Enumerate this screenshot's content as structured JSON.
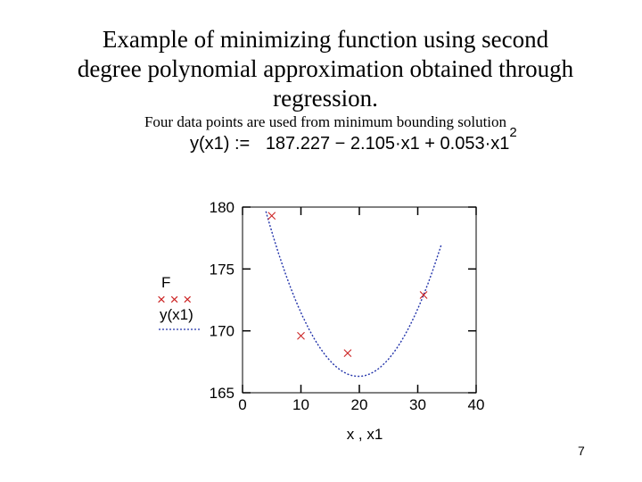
{
  "slide": {
    "title_lines": [
      "Example of minimizing function using second",
      "degree polynomial approximation obtained through",
      "regression."
    ],
    "subtitle": "Four data points are used from minimum bounding solution",
    "equation": {
      "lhs": "y(x1) :=",
      "rhs": "187.227 − 2.105·x1 + 0.053·x1",
      "exponent": "2"
    },
    "page_number": "7"
  },
  "chart_data": {
    "type": "scatter",
    "xlabel": "x , x1",
    "xlim": [
      0,
      40
    ],
    "ylim": [
      165,
      180
    ],
    "x_ticks": [
      0,
      10,
      20,
      30,
      40
    ],
    "y_ticks": [
      165,
      170,
      175,
      180
    ],
    "grid": false,
    "legend_position": "left",
    "series": [
      {
        "name": "F",
        "style": "markers",
        "marker_text": "×  ×  ×",
        "marker": "x",
        "color": "#cc2222",
        "points": [
          [
            5,
            179.3
          ],
          [
            10,
            169.6
          ],
          [
            18,
            168.2
          ],
          [
            31,
            172.9
          ]
        ]
      },
      {
        "name": "y(x1)",
        "style": "dotted-line",
        "color": "#2233aa",
        "function": {
          "c0": 187.227,
          "c1": -2.105,
          "c2": 0.053
        },
        "x_range": [
          4,
          34
        ]
      }
    ]
  }
}
